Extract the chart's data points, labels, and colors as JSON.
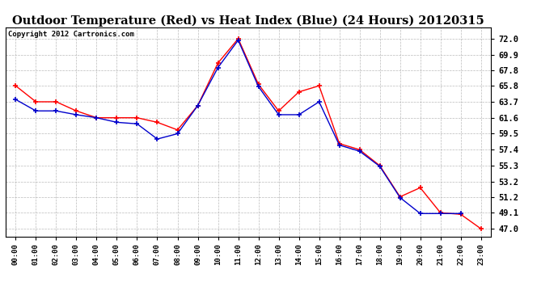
{
  "title": "Outdoor Temperature (Red) vs Heat Index (Blue) (24 Hours) 20120315",
  "copyright": "Copyright 2012 Cartronics.com",
  "x_labels": [
    "00:00",
    "01:00",
    "02:00",
    "03:00",
    "04:00",
    "05:00",
    "06:00",
    "07:00",
    "08:00",
    "09:00",
    "10:00",
    "11:00",
    "12:00",
    "13:00",
    "14:00",
    "15:00",
    "16:00",
    "17:00",
    "18:00",
    "19:00",
    "20:00",
    "21:00",
    "22:00",
    "23:00"
  ],
  "temp_red": [
    65.8,
    63.7,
    63.7,
    62.5,
    61.6,
    61.6,
    61.6,
    61.0,
    60.0,
    63.2,
    68.8,
    72.0,
    66.0,
    62.5,
    65.0,
    65.8,
    58.2,
    57.4,
    55.3,
    51.2,
    52.4,
    49.1,
    48.9,
    47.0
  ],
  "heat_blue": [
    64.0,
    62.5,
    62.5,
    62.0,
    61.6,
    61.0,
    60.8,
    58.8,
    59.5,
    63.2,
    68.2,
    71.8,
    65.7,
    62.0,
    62.0,
    63.7,
    58.0,
    57.2,
    55.2,
    51.1,
    49.0,
    49.0,
    49.0,
    null
  ],
  "ylim_min": 46.0,
  "ylim_max": 73.5,
  "yticks": [
    47.0,
    49.1,
    51.2,
    53.2,
    55.3,
    57.4,
    59.5,
    61.6,
    63.7,
    65.8,
    67.8,
    69.9,
    72.0
  ],
  "bg_color": "#ffffff",
  "grid_color": "#aaaaaa",
  "red_color": "#ff0000",
  "blue_color": "#0000cc",
  "title_fontsize": 10.5,
  "copyright_fontsize": 6.5,
  "tick_fontsize": 7.5,
  "xtick_fontsize": 6.5
}
